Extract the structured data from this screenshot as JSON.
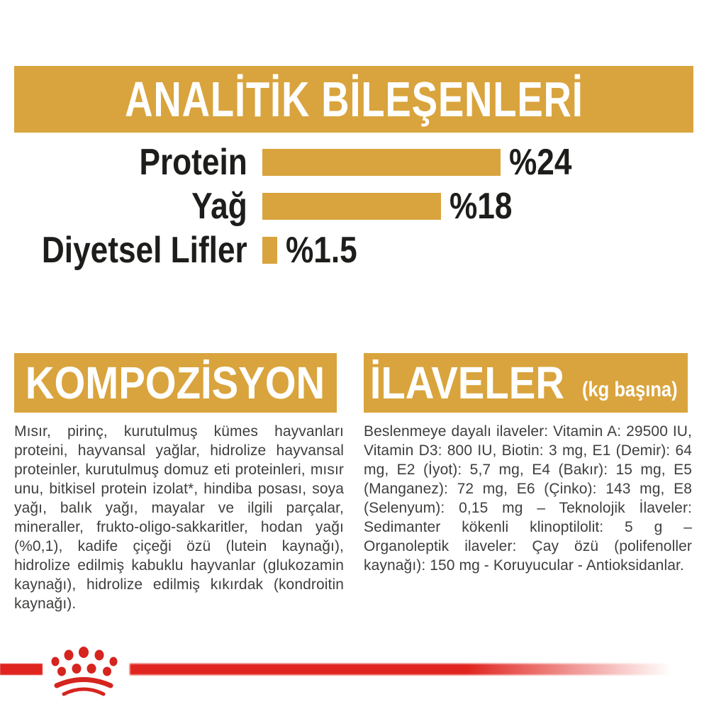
{
  "chart_data": {
    "type": "bar",
    "orientation": "horizontal",
    "title": "ANALİTİK BİLEŞENLERİ",
    "categories": [
      "Protein",
      "Yağ",
      "Diyetsel Lifler"
    ],
    "values": [
      24,
      18,
      1.5
    ],
    "value_labels": [
      "%24",
      "%18",
      "%1.5"
    ],
    "unit": "percent",
    "xlim": [
      0,
      24
    ],
    "bar_color": "#D9A43D",
    "grid": false,
    "legend": false
  },
  "composition": {
    "title": "KOMPOZİSYON",
    "body": "Mısır, pirinç, kurutulmuş kümes hayvanları proteini, hayvansal yağlar, hidrolize hayvansal proteinler, kurutulmuş domuz eti proteinleri, mısır unu, bitkisel protein izolat*, hindiba posası, soya yağı, balık yağı, mayalar ve ilgili parçalar, mineraller, frukto-oligo-sakkaritler, hodan yağı (%0,1), kadife çiçeği özü (lutein kaynağı), hidrolize edilmiş kabuklu hayvanlar (glukozamin kaynağı), hidrolize edilmiş kıkırdak (kondroitin kaynağı)."
  },
  "additives": {
    "title": "İLAVELER",
    "subtitle": "(kg başına)",
    "body": "Beslenmeye dayalı ilaveler: Vitamin A: 29500 IU, Vitamin D3: 800 IU, Biotin: 3 mg, E1 (Demir): 64 mg, E2 (İyot): 5,7 mg, E4 (Bakır): 15 mg, E5 (Manganez): 72 mg, E6 (Çinko): 143 mg, E8 (Selenyum): 0,15 mg – Teknolojik İlaveler: Sedimanter kökenli klinoptilolit: 5 g – Organoleptik ilaveler: Çay özü (polifenoller kaynağı): 150 mg - Koruyucular - Antioksidanlar."
  },
  "footer": {
    "logo": "royal-canin-crown-paw-logo"
  },
  "colors": {
    "gold": "#D9A43D",
    "red": "#E0241F",
    "logo_red": "#D6241F",
    "heading_text": "#FFFFFF",
    "label_text": "#1D1D1B",
    "body_text": "#3E3E3D",
    "background": "#FFFFFF"
  }
}
